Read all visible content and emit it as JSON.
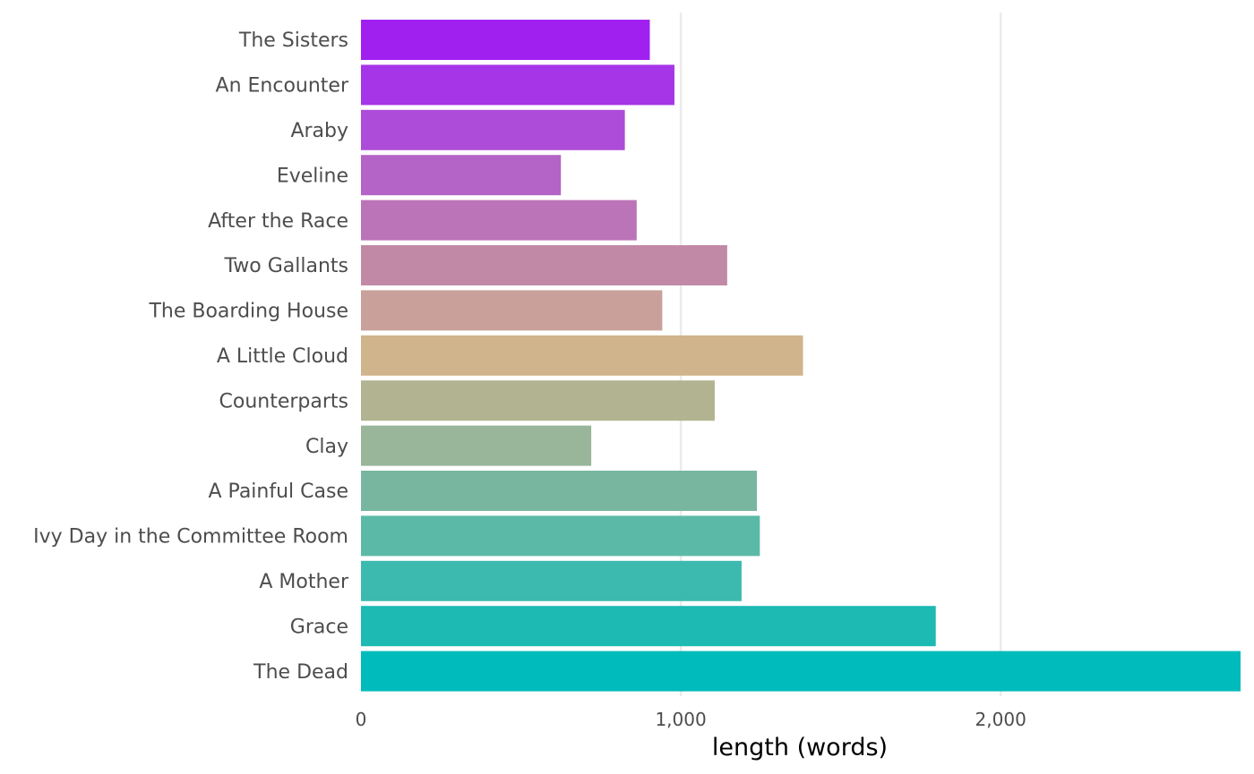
{
  "chart_data": {
    "type": "bar",
    "orientation": "horizontal",
    "categories": [
      "The Sisters",
      "An Encounter",
      "Araby",
      "Eveline",
      "After the Race",
      "Two Gallants",
      "The Boarding House",
      "A Little Cloud",
      "Counterparts",
      "Clay",
      "A Painful Case",
      "Ivy Day in the Committee Room",
      "A Mother",
      "Grace",
      "The Dead"
    ],
    "values": [
      903,
      980,
      825,
      625,
      862,
      1145,
      942,
      1382,
      1106,
      720,
      1238,
      1247,
      1190,
      1797,
      2750
    ],
    "colors": [
      "#A020F0",
      "#A535E6",
      "#AD4CD8",
      "#B463C6",
      "#BC74B8",
      "#C289A6",
      "#C9A09A",
      "#D0B48B",
      "#B2B391",
      "#99B69A",
      "#79B6A0",
      "#5BBAA7",
      "#3CBAAF",
      "#1DB9B3",
      "#00BBBB"
    ],
    "xlabel": "length (words)",
    "ylabel": "",
    "title": "",
    "xlim": [
      0,
      2750
    ],
    "xticks": [
      0,
      1000,
      2000
    ],
    "xtick_labels": [
      "0",
      "1,000",
      "2,000"
    ],
    "grid": "vertical major lines",
    "legend": "none"
  }
}
